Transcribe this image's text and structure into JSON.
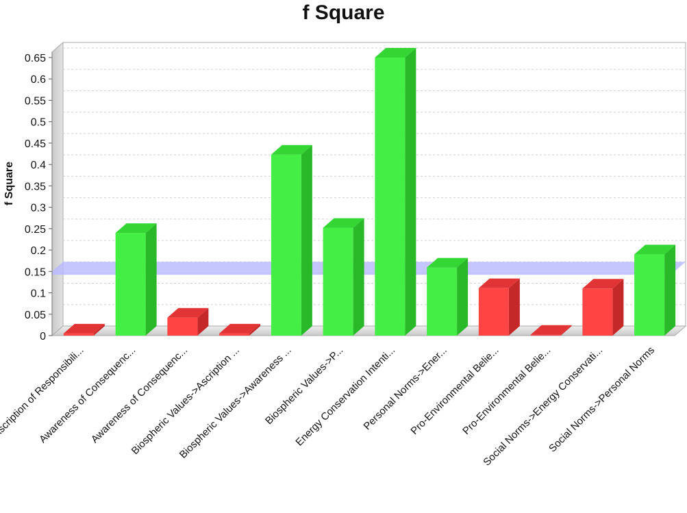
{
  "chart_data": {
    "type": "bar",
    "title": "f Square",
    "xlabel": "",
    "ylabel": "f Square",
    "ylim": [
      0,
      0.65
    ],
    "yticks": [
      "0",
      "0.05",
      "0.1",
      "0.15",
      "0.2",
      "0.25",
      "0.3",
      "0.35",
      "0.4",
      "0.45",
      "0.5",
      "0.55",
      "0.6",
      "0.65"
    ],
    "categories": [
      "Ascription of Responsibili...",
      "Awareness of Consequenc...",
      "Awareness of Consequenc...",
      "Biospheric Values->Ascription ...",
      "Biospheric Values->Awareness ...",
      "Biospheric Values->P...",
      "Energy Conservation Intenti...",
      "Personal Norms->Ener...",
      "Pro-Environmental Belie...",
      "Pro-Environmental Belie...",
      "Social Norms->Energy Conservati...",
      "Social Norms->Personal Norms"
    ],
    "values": [
      0.005,
      0.24,
      0.042,
      0.005,
      0.423,
      0.252,
      0.65,
      0.159,
      0.111,
      0.002,
      0.11,
      0.19
    ],
    "bar_status": [
      "below",
      "above",
      "below",
      "below",
      "above",
      "above",
      "above",
      "above",
      "below",
      "below",
      "below",
      "above"
    ],
    "threshold": 0.15,
    "grid": true,
    "legend": "none",
    "colors": {
      "above": "#44ee44",
      "below": "#ff4444",
      "threshold": "#b8b8ff"
    }
  }
}
